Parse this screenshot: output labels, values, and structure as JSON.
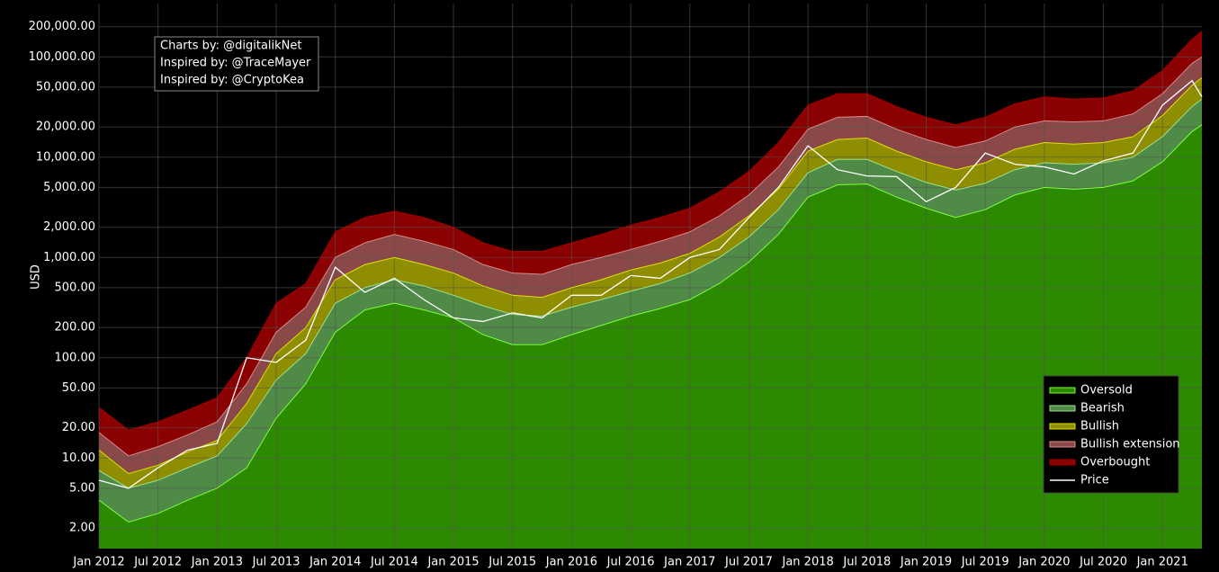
{
  "chart_data": {
    "type": "band",
    "y_label": "USD",
    "log_scale": true,
    "grid": true,
    "legend_position": "bottom-right",
    "annotation": [
      "Charts by: @digitalikNet",
      "Inspired by: @TraceMayer",
      "Inspired by: @CryptoKea"
    ],
    "x": [
      "Jan 2012",
      "Apr 2012",
      "Jul 2012",
      "Oct 2012",
      "Jan 2013",
      "Apr 2013",
      "Jul 2013",
      "Oct 2013",
      "Jan 2014",
      "Apr 2014",
      "Jul 2014",
      "Oct 2014",
      "Jan 2015",
      "Apr 2015",
      "Jul 2015",
      "Oct 2015",
      "Jan 2016",
      "Apr 2016",
      "Jul 2016",
      "Oct 2016",
      "Jan 2017",
      "Apr 2017",
      "Jul 2017",
      "Oct 2017",
      "Jan 2018",
      "Apr 2018",
      "Jul 2018",
      "Oct 2018",
      "Jan 2019",
      "Apr 2019",
      "Jul 2019",
      "Oct 2019",
      "Jan 2020",
      "Apr 2020",
      "Jul 2020",
      "Oct 2020",
      "Jan 2021",
      "Apr 2021",
      "May 2021"
    ],
    "xlim": [
      "Jan 2012",
      "May 2021"
    ],
    "xticks": [
      "Jan 2012",
      "Jul 2012",
      "Jan 2013",
      "Jul 2013",
      "Jan 2014",
      "Jul 2014",
      "Jan 2015",
      "Jul 2015",
      "Jan 2016",
      "Jul 2016",
      "Jan 2017",
      "Jul 2017",
      "Jan 2018",
      "Jul 2018",
      "Jan 2019",
      "Jul 2019",
      "Jan 2020",
      "Jul 2020",
      "Jan 2021"
    ],
    "ylim": [
      1.25,
      340000
    ],
    "yticks": [
      {
        "value": 2,
        "label": "2.00"
      },
      {
        "value": 5,
        "label": "5.00"
      },
      {
        "value": 10,
        "label": "10.00"
      },
      {
        "value": 20,
        "label": "20.00"
      },
      {
        "value": 50,
        "label": "50.00"
      },
      {
        "value": 100,
        "label": "100.00"
      },
      {
        "value": 200,
        "label": "200.00"
      },
      {
        "value": 500,
        "label": "500.00"
      },
      {
        "value": 1000,
        "label": "1,000.00"
      },
      {
        "value": 2000,
        "label": "2,000.00"
      },
      {
        "value": 5000,
        "label": "5,000.00"
      },
      {
        "value": 10000,
        "label": "10,000.00"
      },
      {
        "value": 20000,
        "label": "20,000.00"
      },
      {
        "value": 50000,
        "label": "50,000.00"
      },
      {
        "value": 100000,
        "label": "100,000.00"
      },
      {
        "value": 200000,
        "label": "200,000.00"
      }
    ],
    "series": [
      {
        "name": "Oversold",
        "color": "#2b8a00",
        "line_color": "#7dff3a",
        "values": [
          3.8,
          2.3,
          2.8,
          3.8,
          5,
          8,
          25,
          55,
          180,
          300,
          350,
          300,
          250,
          170,
          135,
          135,
          170,
          210,
          260,
          310,
          380,
          550,
          900,
          1700,
          4000,
          5300,
          5400,
          4000,
          3100,
          2500,
          3000,
          4200,
          5000,
          4800,
          5000,
          5800,
          9000,
          18000,
          21000
        ]
      },
      {
        "name": "Bearish",
        "color": "#4f8a47",
        "line_color": "#9be08c",
        "values": [
          7.5,
          5,
          6,
          8,
          10.5,
          22,
          60,
          110,
          350,
          500,
          600,
          520,
          420,
          330,
          270,
          260,
          320,
          380,
          460,
          550,
          700,
          1000,
          1600,
          3000,
          7000,
          9500,
          9500,
          7200,
          5600,
          4700,
          5500,
          7500,
          8800,
          8500,
          8800,
          10000,
          16000,
          32000,
          38000
        ]
      },
      {
        "name": "Bullish",
        "color": "#8e8e00",
        "line_color": "#e0e000",
        "values": [
          12,
          7,
          8.5,
          11.5,
          15,
          35,
          110,
          200,
          600,
          850,
          1000,
          850,
          700,
          520,
          420,
          400,
          500,
          600,
          750,
          880,
          1100,
          1600,
          2600,
          4800,
          11500,
          15000,
          15500,
          11500,
          9000,
          7500,
          8800,
          12000,
          14000,
          13500,
          14000,
          16000,
          26000,
          52000,
          62000
        ]
      },
      {
        "name": "Bullish extension",
        "color": "#8a4848",
        "line_color": "#d88a8a",
        "values": [
          18,
          10.5,
          13,
          17,
          23,
          55,
          180,
          320,
          1000,
          1400,
          1700,
          1450,
          1200,
          850,
          700,
          680,
          850,
          1000,
          1200,
          1450,
          1800,
          2600,
          4200,
          8000,
          19000,
          25000,
          25500,
          19000,
          15000,
          12500,
          14500,
          20000,
          23000,
          22500,
          23000,
          27000,
          43000,
          86000,
          100000
        ]
      },
      {
        "name": "Overbought",
        "color": "#8b0000",
        "line_color": "#a00000",
        "values": [
          32,
          19,
          23,
          30,
          40,
          100,
          350,
          550,
          1800,
          2500,
          2900,
          2500,
          2000,
          1400,
          1150,
          1150,
          1400,
          1700,
          2100,
          2500,
          3100,
          4500,
          7200,
          14000,
          33000,
          43000,
          43000,
          32000,
          25000,
          21000,
          25000,
          34000,
          40000,
          38000,
          39000,
          46000,
          73000,
          150000,
          180000
        ]
      },
      {
        "name": "Price",
        "color": "#ffffff",
        "kind": "line",
        "values": [
          6,
          5,
          8,
          12,
          14,
          100,
          90,
          150,
          800,
          450,
          620,
          380,
          250,
          230,
          280,
          250,
          420,
          420,
          660,
          620,
          1000,
          1200,
          2500,
          5000,
          13000,
          7500,
          6500,
          6400,
          3600,
          5000,
          11000,
          8500,
          8000,
          6800,
          9200,
          11000,
          33000,
          58000,
          40000
        ]
      }
    ]
  }
}
